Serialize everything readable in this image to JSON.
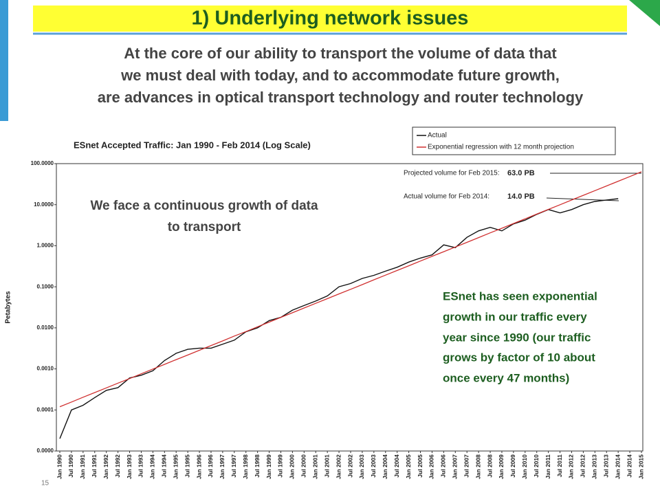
{
  "slide": {
    "title": "1) Underlying network issues",
    "body": [
      "At the core of our ability to transport the volume of data that",
      "we must deal with today, and to accommodate future growth,",
      "are advances in optical transport technology and router technology"
    ],
    "page_number": "15"
  },
  "chart_data": {
    "type": "line",
    "title": "ESnet Accepted Traffic: Jan 1990 - Feb 2014 (Log Scale)",
    "y_label": "Petabytes",
    "log_scale": true,
    "legend": "top-right",
    "categories": [
      "Jan 1990",
      "Jul 1990",
      "Jan 1991",
      "Jul 1991",
      "Jan 1992",
      "Jul 1992",
      "Jan 1993",
      "Jul 1993",
      "Jan 1994",
      "Jul 1994",
      "Jan 1995",
      "Jul 1995",
      "Jan 1996",
      "Jul 1996",
      "Jan 1997",
      "Jul 1997",
      "Jan 1998",
      "Jul 1998",
      "Jan 1999",
      "Jul 1999",
      "Jan 2000",
      "Jul 2000",
      "Jan 2001",
      "Jul 2001",
      "Jan 2002",
      "Jul 2002",
      "Jan 2003",
      "Jul 2003",
      "Jan 2004",
      "Jul 2004",
      "Jan 2005",
      "Jul 2005",
      "Jan 2006",
      "Jul 2006",
      "Jan 2007",
      "Jul 2007",
      "Jan 2008",
      "Jul 2008",
      "Jan 2009",
      "Jul 2009",
      "Jan 2010",
      "Jul 2010",
      "Jan 2011",
      "Jul 2011",
      "Jan 2012",
      "Jul 2012",
      "Jan 2013",
      "Jul 2013",
      "Jan 2014",
      "Jul 2014",
      "Jan 2015"
    ],
    "series": [
      {
        "name": "Actual",
        "color": "#111111",
        "values": [
          2e-05,
          0.0001,
          0.00013,
          0.0002,
          0.0003,
          0.00035,
          0.0006,
          0.0007,
          0.0009,
          0.0016,
          0.0024,
          0.003,
          0.0032,
          0.0032,
          0.004,
          0.005,
          0.008,
          0.01,
          0.015,
          0.018,
          0.027,
          0.035,
          0.045,
          0.06,
          0.1,
          0.12,
          0.16,
          0.19,
          0.24,
          0.3,
          0.4,
          0.5,
          0.6,
          1.05,
          0.9,
          1.6,
          2.3,
          2.8,
          2.3,
          3.4,
          4.2,
          5.8,
          7.6,
          6.3,
          7.6,
          10,
          12,
          13,
          14,
          null,
          null
        ]
      },
      {
        "name": "Exponential regression with 12 month projection",
        "color": "#d03030",
        "values": [
          0.00012,
          0.000156,
          0.000204,
          0.000265,
          0.000345,
          0.00045,
          0.00058,
          0.00076,
          0.00099,
          0.00129,
          0.00168,
          0.00218,
          0.00284,
          0.0037,
          0.0048,
          0.0063,
          0.0081,
          0.0106,
          0.0138,
          0.018,
          0.0233,
          0.0304,
          0.0395,
          0.0514,
          0.067,
          0.087,
          0.113,
          0.148,
          0.192,
          0.25,
          0.325,
          0.423,
          0.55,
          0.716,
          0.93,
          1.21,
          1.58,
          2.06,
          2.67,
          3.48,
          4.53,
          5.89,
          7.67,
          9.98,
          13.0,
          16.9,
          22.0,
          28.6,
          37.2,
          48.5,
          63.1
        ]
      }
    ],
    "ylim": [
      1e-05,
      100
    ],
    "yticks": [
      {
        "value": 1e-05,
        "label": "0.0000"
      },
      0.0001,
      {
        "value": 0.001,
        "label": "0.0010"
      },
      {
        "value": 0.01,
        "label": "0.0100"
      },
      {
        "value": 0.1,
        "label": "0.1000"
      },
      {
        "value": 1,
        "label": "1.0000"
      },
      {
        "value": 10,
        "label": "10.0000"
      },
      {
        "value": 100,
        "label": "100.0000"
      }
    ],
    "annotations": {
      "projected_label": "Projected volume for Feb 2015:",
      "projected_value": "63.0 PB",
      "actual_label": "Actual volume for Feb 2014:",
      "actual_value": "14.0 PB",
      "overlay": [
        "We face a continuous growth of data",
        "to transport"
      ],
      "note": [
        "ESnet has seen exponential",
        "growth in our traffic every",
        "year since 1990 (our traffic",
        "grows by factor of 10 about",
        "once every 47 months)"
      ]
    }
  }
}
